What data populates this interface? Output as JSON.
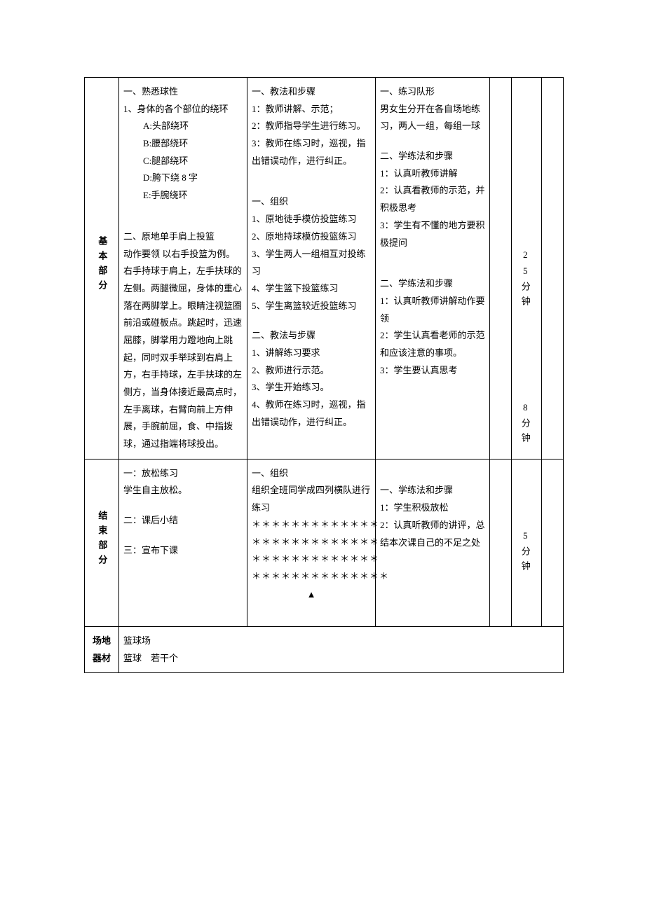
{
  "sections": {
    "basic": {
      "label": "基本部分",
      "content": {
        "p1_title": "一、熟悉球性",
        "p1_1": "1、身体的各个部位的绕环",
        "p1_a": "A:头部绕环",
        "p1_b": "B:腰部绕环",
        "p1_c": "C:腿部绕环",
        "p1_d": "D:胯下绕 8 字",
        "p1_e": "E:手腕绕环",
        "p2_title": "二、原地单手肩上投篮",
        "p2_body": "动作要领 以右手投篮为例。右手持球于肩上，左手扶球的左侧。两腿微屈，身体的重心落在两脚掌上。眼睛注视篮圈前沿或碰板点。跳起时，迅速屈膝，脚掌用力蹬地向上跳起，同时双手举球到右肩上方，右手持球，左手扶球的左侧方，当身体接近最高点时，左手离球，右臂向前上方伸展，手腕前屈，食、中指拨球，通过指端将球投出。"
      },
      "teach": {
        "t1_title": "一、教法和步骤",
        "t1_1": "1：教师讲解、示范；",
        "t1_2": "2：教师指导学生进行练习。",
        "t1_3": "3：教师在练习时，巡视，指出错误动作，进行纠正。",
        "t2_title": "一、组织",
        "t2_1": "1、原地徒手模仿投篮练习",
        "t2_2": "2、原地持球模仿投篮练习",
        "t2_3": "3、学生两人一组相互对投练习",
        "t2_4": "4、学生篮下投篮练习",
        "t2_5": "5、学生离篮较近投篮练习",
        "t3_title": "二、教法与步骤",
        "t3_1": "1、讲解练习要求",
        "t3_2": "2、教师进行示范。",
        "t3_3": "3、学生开始练习。",
        "t3_4": "4、教师在练习时，巡视，指出错误动作，进行纠正。"
      },
      "learn": {
        "l1_title": "一、练习队形",
        "l1_body": "男女生分开在各自场地练习，两人一组，每组一球",
        "l2_title": "二、学练法和步骤",
        "l2_1": "1：认真听教师讲解",
        "l2_2": "2：认真看教师的示范，并积极思考",
        "l2_3": "3：学生有不懂的地方要积极提问",
        "l3_title": "二、学练法和步骤",
        "l3_1": "1：认真听教师讲解动作要领",
        "l3_2": "2：学生认真看老师的示范和应该注意的事项。",
        "l3_3": "3：学生要认真思考"
      },
      "time1": "25分钟",
      "time2": "8分钟"
    },
    "end": {
      "label": "结束部分",
      "content": {
        "c1": "一：放松练习",
        "c2": "学生自主放松。",
        "c3": "二：课后小结",
        "c4": "三：宣布下课"
      },
      "teach": {
        "t_title": "一、组织",
        "t_body": "组织全班同学成四列横队进行练习",
        "row": "＊＊＊＊＊＊＊＊＊＊＊＊＊",
        "row2": "＊＊＊＊＊＊＊＊＊＊＊＊＊＊",
        "arrow": "▲"
      },
      "learn": {
        "l_title": "一、学练法和步骤",
        "l1": "1：学生积极放松",
        "l2": "2：认真听教师的讲评，总结本次课自己的不足之处"
      },
      "time": "5分钟"
    },
    "venue": {
      "label1": "场地",
      "label2": "器材",
      "line1": "篮球场",
      "line2": "篮球　若干个"
    }
  }
}
